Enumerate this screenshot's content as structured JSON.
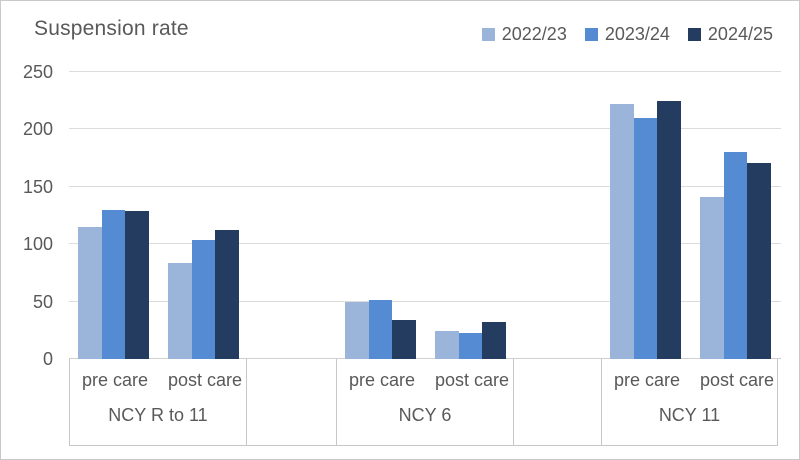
{
  "chart_data": {
    "type": "bar",
    "title": "Suspension rate",
    "xlabel": "",
    "ylabel": "",
    "ylim": [
      0,
      250
    ],
    "y_ticks": [
      0,
      50,
      100,
      150,
      200,
      250
    ],
    "grid": true,
    "legend_position": "top-right",
    "series": [
      {
        "name": "2022/23",
        "color": "#9ab4da"
      },
      {
        "name": "2023/24",
        "color": "#548bd3"
      },
      {
        "name": "2024/25",
        "color": "#243c5f"
      }
    ],
    "groups": [
      {
        "label": "NCY R to 11",
        "clusters": [
          {
            "label": "pre care",
            "values": [
              115,
              130,
              129
            ]
          },
          {
            "label": "post care",
            "values": [
              84,
              104,
              112
            ]
          }
        ]
      },
      {
        "label": "NCY 6",
        "clusters": [
          {
            "label": "pre care",
            "values": [
              50,
              51,
              34
            ]
          },
          {
            "label": "post care",
            "values": [
              24,
              23,
              32
            ]
          }
        ]
      },
      {
        "label": "NCY 11",
        "clusters": [
          {
            "label": "pre care",
            "values": [
              222,
              210,
              225
            ]
          },
          {
            "label": "post care",
            "values": [
              141,
              180,
              171
            ]
          }
        ]
      }
    ],
    "colors": {
      "gridline": "#dcdcdc",
      "axis_box_line": "#c7c7c7",
      "text": "#595959",
      "chart_border": "#c9c9c9"
    }
  }
}
